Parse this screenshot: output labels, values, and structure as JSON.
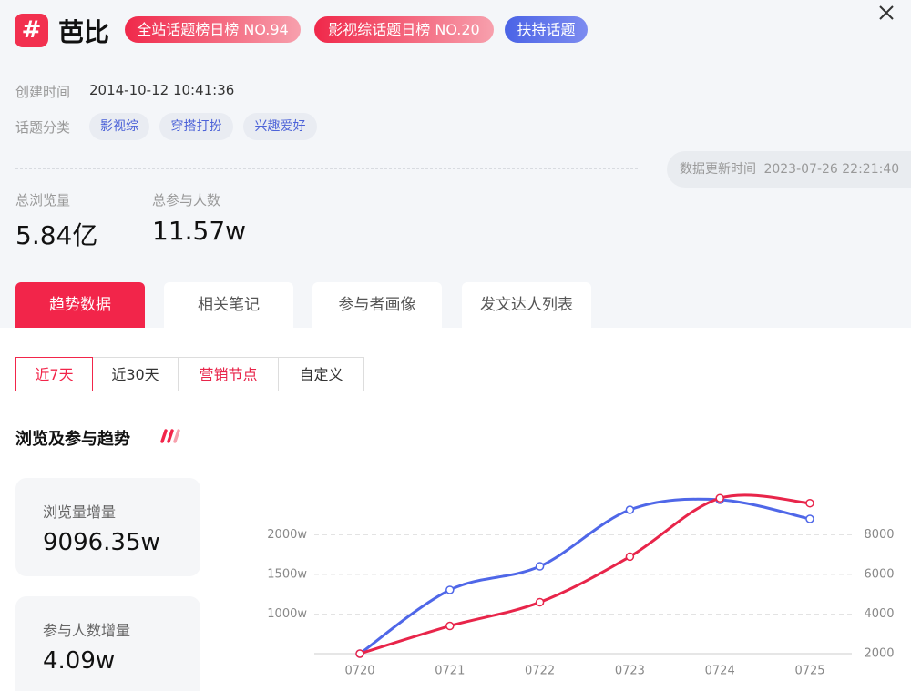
{
  "header": {
    "title": "芭比",
    "badges": [
      "全站话题榜日榜 NO.94",
      "影视综话题日榜 NO.20",
      "扶持话题"
    ]
  },
  "created": {
    "label": "创建时间",
    "value": "2014-10-12 10:41:36"
  },
  "topic_category": {
    "label": "话题分类",
    "tags": [
      "影视综",
      "穿搭打扮",
      "兴趣爱好"
    ]
  },
  "update": {
    "label": "数据更新时间",
    "value": "2023-07-26 22:21:40"
  },
  "stats": [
    {
      "label": "总浏览量",
      "value": "5.84亿"
    },
    {
      "label": "总参与人数",
      "value": "11.57w"
    }
  ],
  "tabs": [
    "趋势数据",
    "相关笔记",
    "参与者画像",
    "发文达人列表"
  ],
  "filters": [
    "近7天",
    "近30天",
    "营销节点",
    "自定义"
  ],
  "section_title": "浏览及参与趋势",
  "cards": [
    {
      "label": "浏览量增量",
      "value": "9096.35w"
    },
    {
      "label": "参与人数增量",
      "value": "4.09w"
    }
  ],
  "chart_data": {
    "type": "line",
    "categories": [
      "0720",
      "0721",
      "0722",
      "0723",
      "0724",
      "0725"
    ],
    "series": [
      {
        "color": "#4f67e8",
        "values": [
          500,
          1305,
          1603,
          2316,
          2443,
          2201
        ]
      },
      {
        "color": "#e8254a",
        "axis": "y2",
        "values": [
          2000,
          3400,
          4600,
          6900,
          9850,
          9600
        ]
      }
    ],
    "ylim": [
      500,
      2500
    ],
    "yticks": [
      {
        "value": 1000,
        "label": "1000w"
      },
      {
        "value": 1500,
        "label": "1500w"
      },
      {
        "value": 2000,
        "label": "2000w"
      }
    ],
    "y2lim": [
      2000,
      10000
    ],
    "y2ticks": [
      2000,
      4000,
      6000,
      8000
    ],
    "grid": true,
    "smooth": true
  }
}
